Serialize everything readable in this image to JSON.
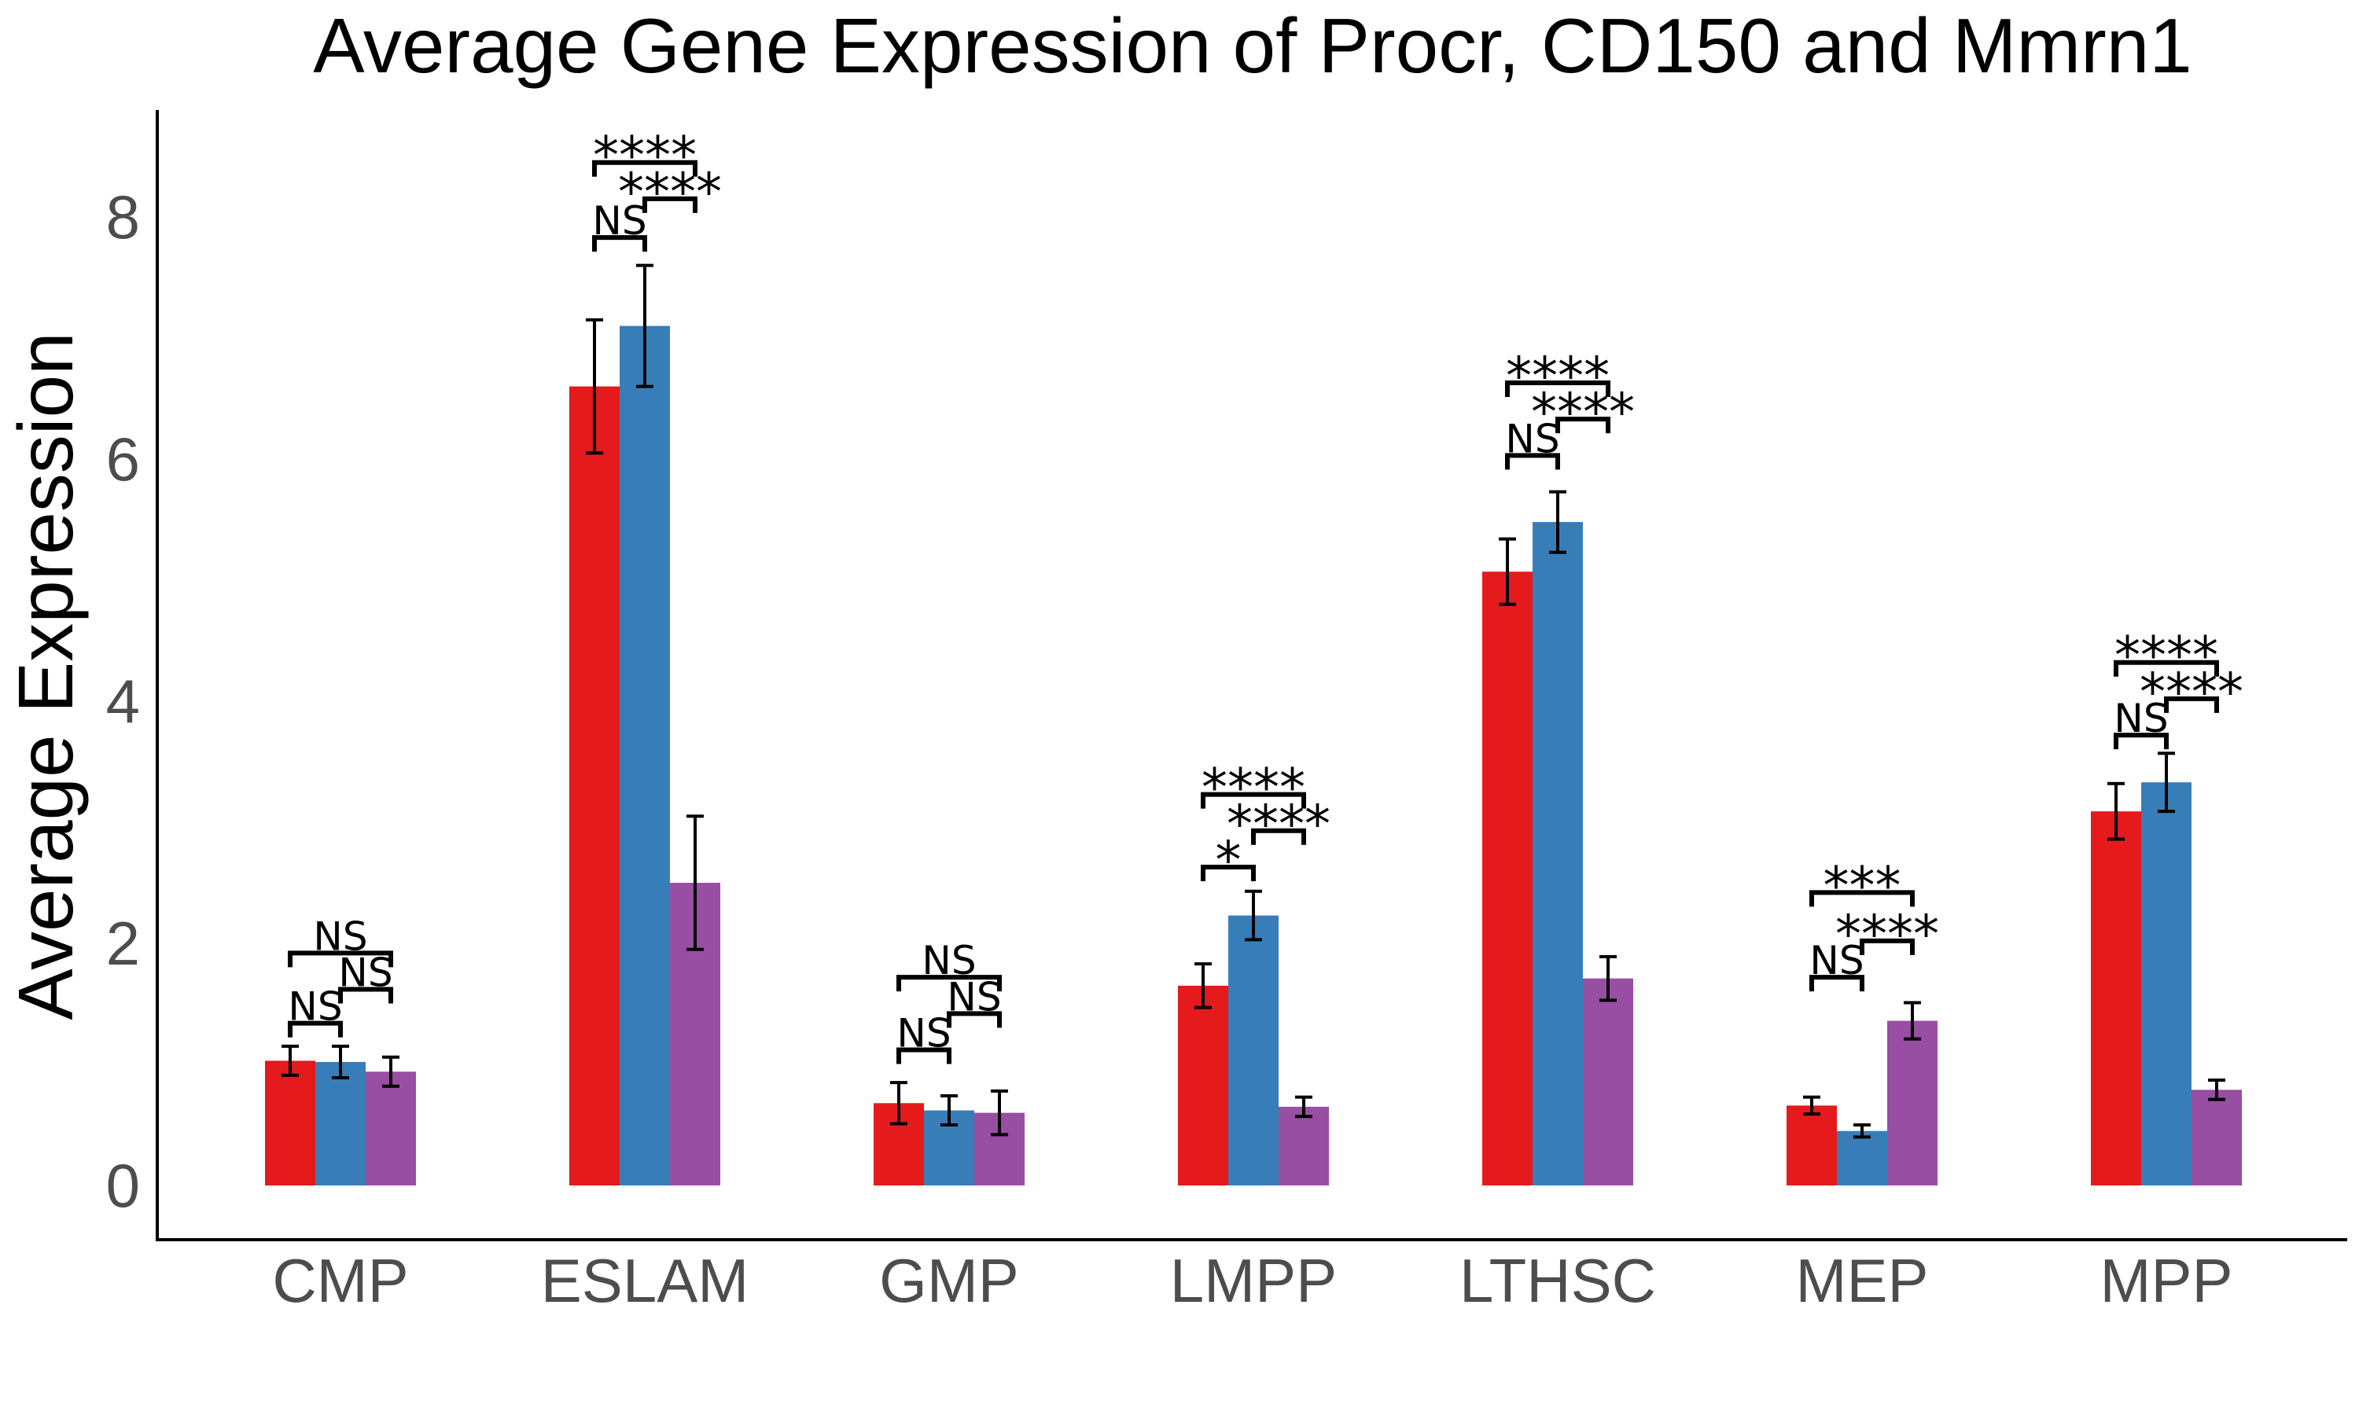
{
  "chart_data": {
    "type": "bar",
    "title": "Average Gene Expression of Procr, CD150 and Mmrn1",
    "xlabel": "",
    "ylabel": "Average Expression",
    "ylim": [
      0,
      8.8
    ],
    "yticks": [
      "0",
      "2",
      "4",
      "6",
      "8"
    ],
    "categories": [
      "CMP",
      "ESLAM",
      "GMP",
      "LMPP",
      "LTHSC",
      "MEP",
      "MPP"
    ],
    "legend": "none",
    "grid": false,
    "series": [
      {
        "color": "#E41A1C",
        "values": [
          1.03,
          6.6,
          0.68,
          1.65,
          5.07,
          0.66,
          3.09
        ],
        "error": [
          0.12,
          0.55,
          0.17,
          0.18,
          0.27,
          0.07,
          0.23
        ]
      },
      {
        "color": "#377EB8",
        "values": [
          1.02,
          7.1,
          0.62,
          2.23,
          5.48,
          0.45,
          3.33
        ],
        "error": [
          0.13,
          0.5,
          0.12,
          0.2,
          0.25,
          0.05,
          0.24
        ]
      },
      {
        "color": "#984EA3",
        "values": [
          0.94,
          2.5,
          0.6,
          0.65,
          1.71,
          1.36,
          0.79
        ],
        "error": [
          0.12,
          0.55,
          0.18,
          0.08,
          0.18,
          0.15,
          0.08
        ]
      }
    ],
    "annotations": [
      {
        "category": "CMP",
        "pair": "1-2",
        "label": "NS",
        "y": 1.34
      },
      {
        "category": "CMP",
        "pair": "2-3",
        "label": "NS",
        "y": 1.62
      },
      {
        "category": "CMP",
        "pair": "1-3",
        "label": "NS",
        "y": 1.92
      },
      {
        "category": "ESLAM",
        "pair": "1-2",
        "label": "NS",
        "y": 7.83
      },
      {
        "category": "ESLAM",
        "pair": "2-3",
        "label": "****",
        "y": 8.15
      },
      {
        "category": "ESLAM",
        "pair": "1-3",
        "label": "****",
        "y": 8.45
      },
      {
        "category": "GMP",
        "pair": "1-2",
        "label": "NS",
        "y": 1.12
      },
      {
        "category": "GMP",
        "pair": "2-3",
        "label": "NS",
        "y": 1.42
      },
      {
        "category": "GMP",
        "pair": "1-3",
        "label": "NS",
        "y": 1.72
      },
      {
        "category": "LMPP",
        "pair": "1-2",
        "label": "*",
        "y": 2.63
      },
      {
        "category": "LMPP",
        "pair": "2-3",
        "label": "****",
        "y": 2.93
      },
      {
        "category": "LMPP",
        "pair": "1-3",
        "label": "****",
        "y": 3.23
      },
      {
        "category": "LTHSC",
        "pair": "1-2",
        "label": "NS",
        "y": 6.03
      },
      {
        "category": "LTHSC",
        "pair": "2-3",
        "label": "****",
        "y": 6.33
      },
      {
        "category": "LTHSC",
        "pair": "1-3",
        "label": "****",
        "y": 6.63
      },
      {
        "category": "MEP",
        "pair": "1-2",
        "label": "NS",
        "y": 1.72
      },
      {
        "category": "MEP",
        "pair": "2-3",
        "label": "****",
        "y": 2.02
      },
      {
        "category": "MEP",
        "pair": "1-3",
        "label": "***",
        "y": 2.42
      },
      {
        "category": "MPP",
        "pair": "1-2",
        "label": "NS",
        "y": 3.72
      },
      {
        "category": "MPP",
        "pair": "2-3",
        "label": "****",
        "y": 4.02
      },
      {
        "category": "MPP",
        "pair": "1-3",
        "label": "****",
        "y": 4.32
      }
    ]
  }
}
